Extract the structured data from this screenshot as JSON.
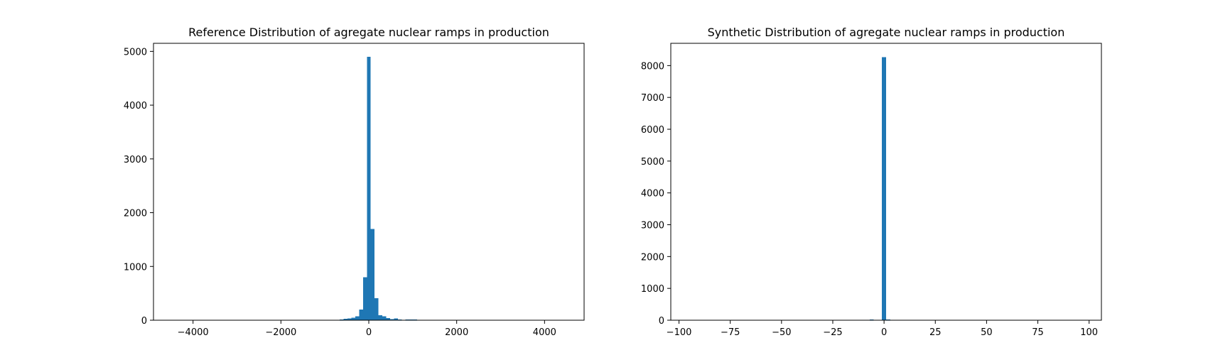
{
  "chart_data": [
    {
      "type": "bar",
      "title": "Reference Distribution of agregate nuclear ramps in production",
      "xlabel": "",
      "ylabel": "",
      "xlim": [
        -4900,
        4900
      ],
      "ylim": [
        0,
        5150
      ],
      "xticks": [
        -4000,
        -2000,
        0,
        2000,
        4000
      ],
      "xtick_labels": [
        "−4000",
        "−2000",
        "0",
        "2000",
        "4000"
      ],
      "yticks": [
        0,
        1000,
        2000,
        3000,
        4000,
        5000
      ],
      "ytick_labels": [
        "0",
        "1000",
        "2000",
        "3000",
        "4000",
        "5000"
      ],
      "bin_width": 88,
      "bins": [
        {
          "x": -968,
          "value": 3
        },
        {
          "x": -880,
          "value": 5
        },
        {
          "x": -792,
          "value": 6
        },
        {
          "x": -704,
          "value": 8
        },
        {
          "x": -616,
          "value": 12
        },
        {
          "x": -528,
          "value": 25
        },
        {
          "x": -440,
          "value": 35
        },
        {
          "x": -352,
          "value": 45
        },
        {
          "x": -264,
          "value": 70
        },
        {
          "x": -176,
          "value": 200
        },
        {
          "x": -88,
          "value": 800
        },
        {
          "x": 0,
          "value": 4900
        },
        {
          "x": 88,
          "value": 1700
        },
        {
          "x": 176,
          "value": 410
        },
        {
          "x": 264,
          "value": 90
        },
        {
          "x": 352,
          "value": 75
        },
        {
          "x": 440,
          "value": 40
        },
        {
          "x": 528,
          "value": 20
        },
        {
          "x": 616,
          "value": 35
        },
        {
          "x": 704,
          "value": 10
        },
        {
          "x": 792,
          "value": 5
        },
        {
          "x": 880,
          "value": 15
        },
        {
          "x": 968,
          "value": 15
        },
        {
          "x": 1056,
          "value": 10
        }
      ]
    },
    {
      "type": "bar",
      "title": "Synthetic Distribution of agregate nuclear ramps in production",
      "xlabel": "",
      "ylabel": "",
      "xlim": [
        -104,
        106
      ],
      "ylim": [
        0,
        8700
      ],
      "xticks": [
        -100,
        -75,
        -50,
        -25,
        0,
        25,
        50,
        75,
        100
      ],
      "xtick_labels": [
        "−100",
        "−75",
        "−50",
        "−25",
        "0",
        "25",
        "50",
        "75",
        "100"
      ],
      "yticks": [
        0,
        1000,
        2000,
        3000,
        4000,
        5000,
        6000,
        7000,
        8000
      ],
      "ytick_labels": [
        "0",
        "1000",
        "2000",
        "3000",
        "4000",
        "5000",
        "6000",
        "7000",
        "8000"
      ],
      "bin_width": 2,
      "bins": [
        {
          "x": -96,
          "value": 15
        },
        {
          "x": -6,
          "value": 20
        },
        {
          "x": 0,
          "value": 8270
        },
        {
          "x": 2,
          "value": 20
        },
        {
          "x": 96,
          "value": 15
        }
      ]
    }
  ]
}
